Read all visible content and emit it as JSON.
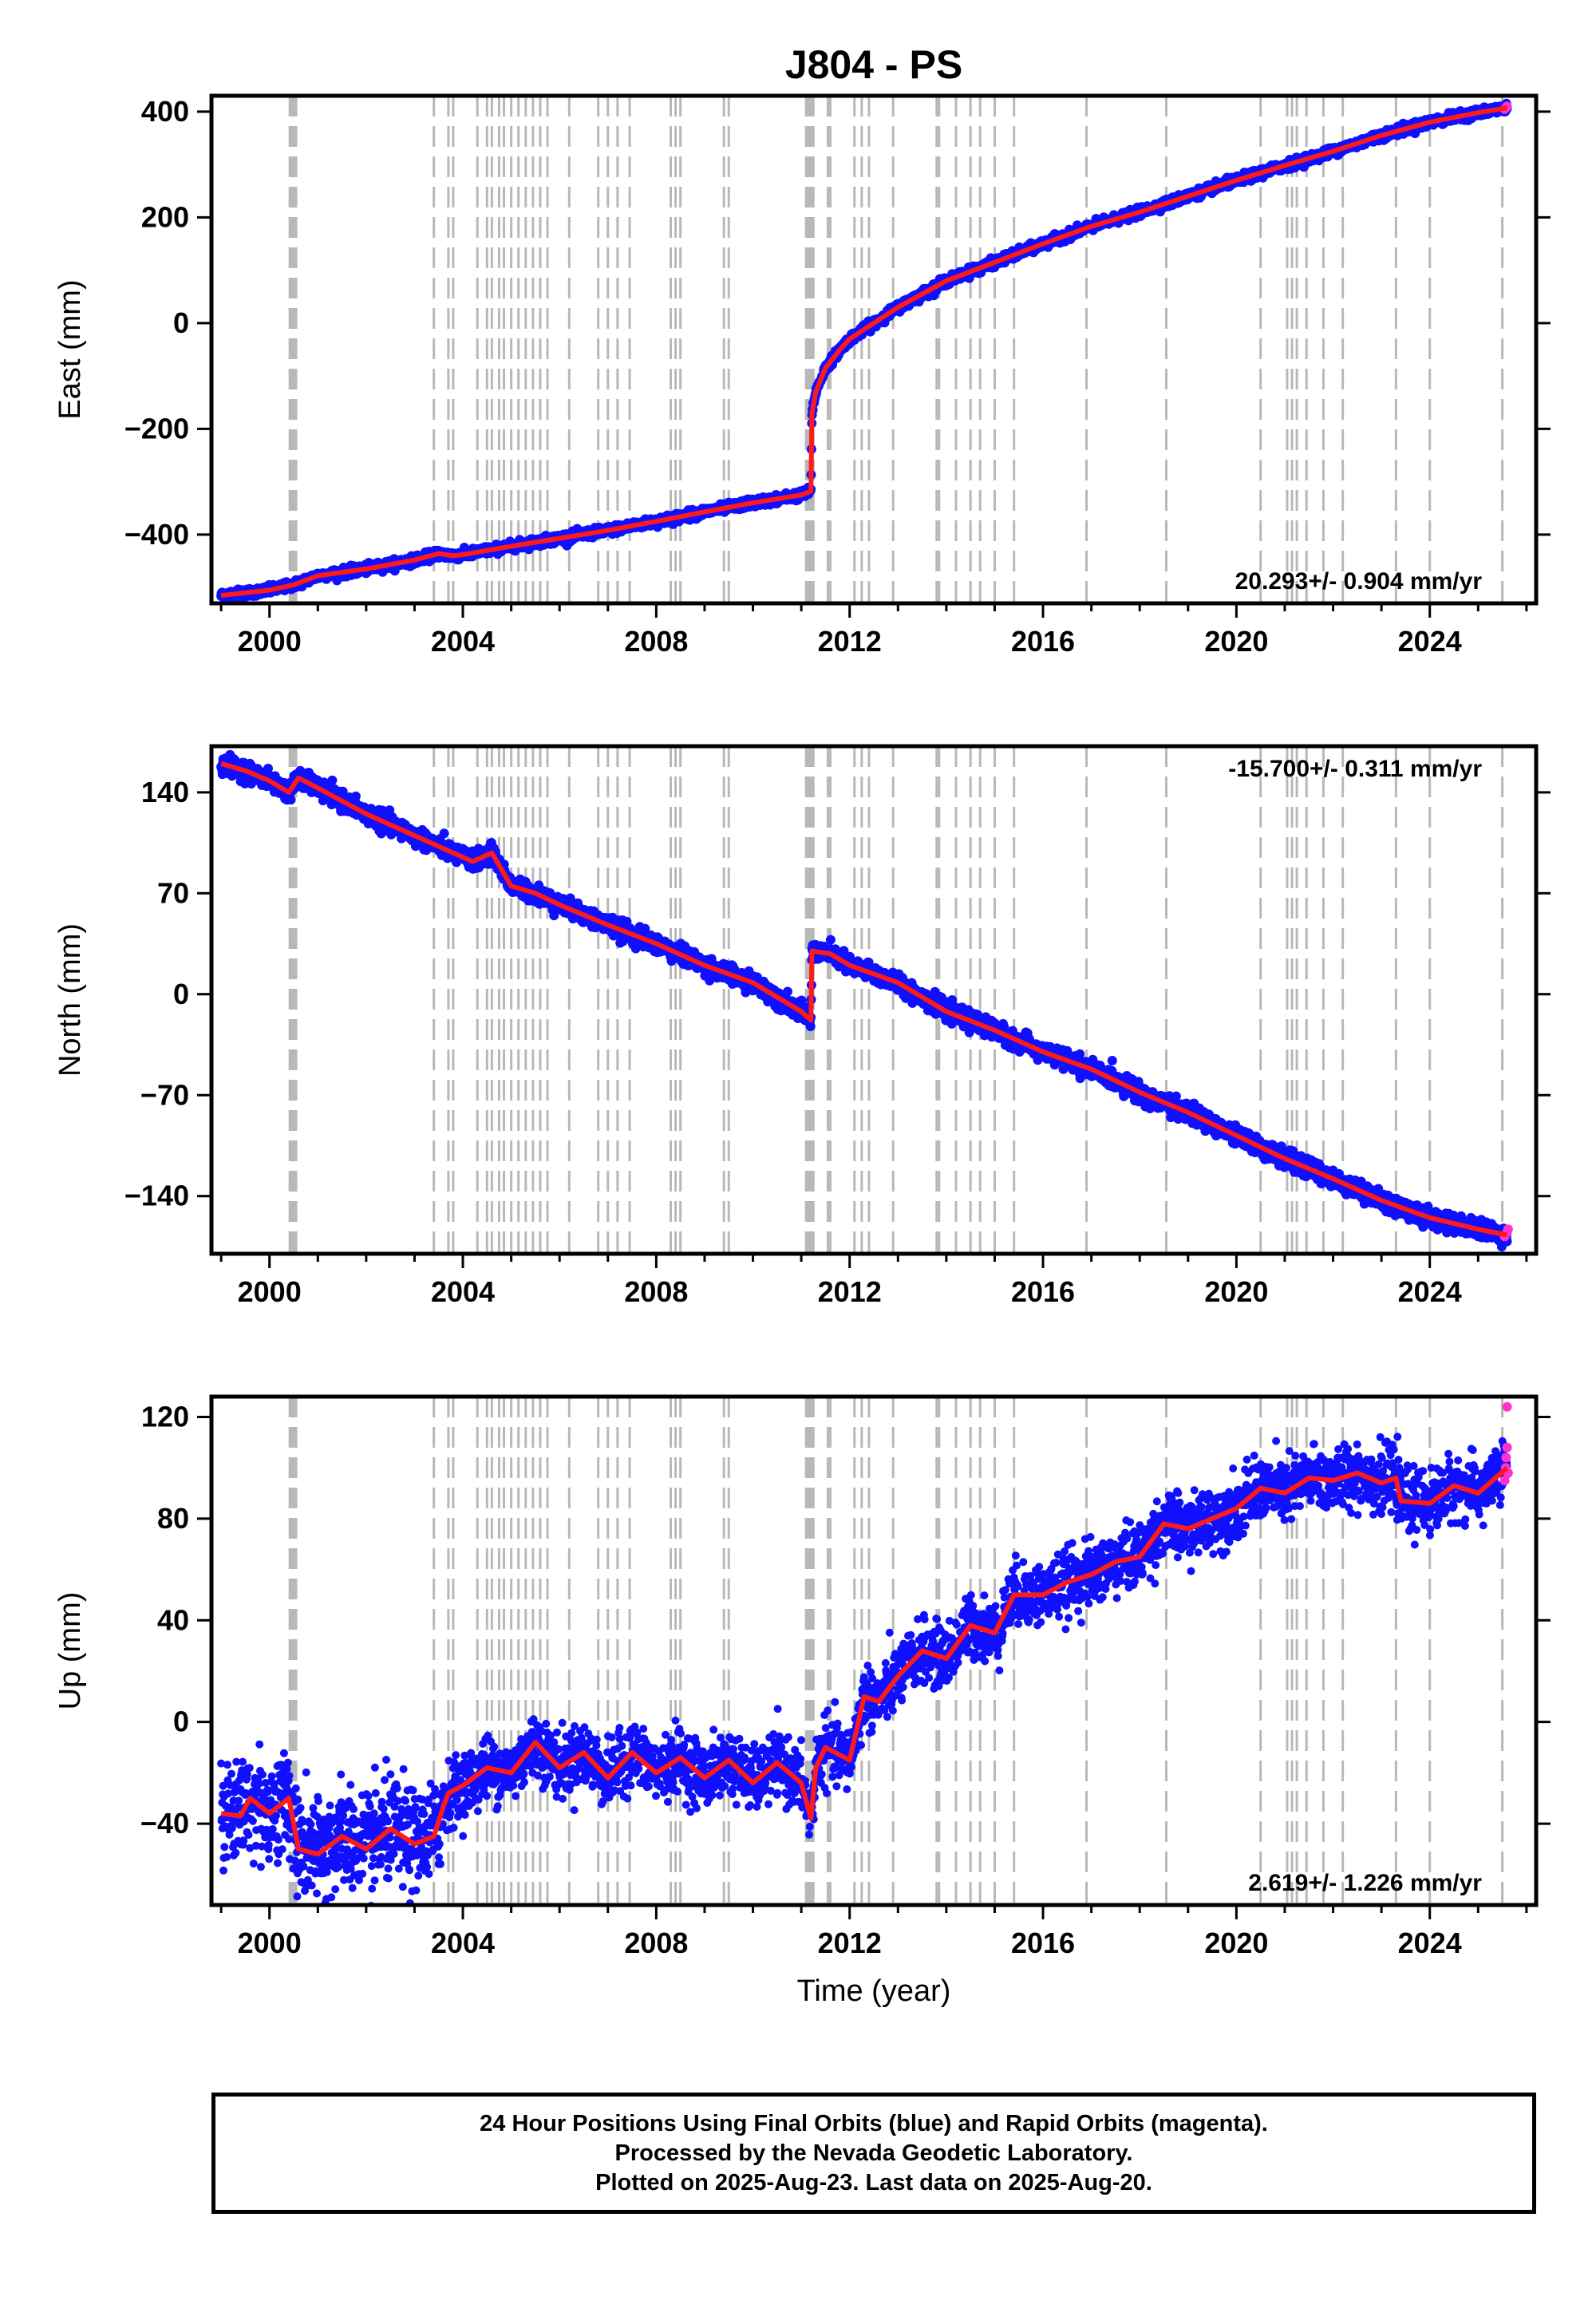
{
  "title": "J804 - PS",
  "colors": {
    "final_orbits": "#1010ff",
    "rapid_orbits": "#ff33cc",
    "trend": "#ff1a1a",
    "offset_lines": "#b8b8b8",
    "frame": "#000000"
  },
  "offset_epochs": [
    2000.42,
    2000.45,
    2000.47,
    2000.5,
    2000.52,
    2000.55,
    2003.4,
    2003.7,
    2003.8,
    2004.3,
    2004.5,
    2004.6,
    2004.75,
    2004.85,
    2005.0,
    2005.15,
    2005.3,
    2005.45,
    2005.6,
    2005.75,
    2006.2,
    2006.8,
    2007.0,
    2007.2,
    2007.45,
    2008.3,
    2008.4,
    2008.5,
    2009.4,
    2009.5,
    2011.1,
    2011.13,
    2011.16,
    2011.19,
    2011.22,
    2011.25,
    2011.55,
    2011.6,
    2012.1,
    2012.25,
    2012.4,
    2012.9,
    2013.8,
    2013.85,
    2014.2,
    2014.5,
    2014.7,
    2015.0,
    2015.4,
    2016.9,
    2018.55,
    2020.5,
    2021.05,
    2021.15,
    2021.25,
    2021.45,
    2021.8,
    2022.2,
    2023.3,
    2024.0,
    2025.5
  ],
  "chart_data": [
    {
      "type": "scatter",
      "name": "east",
      "ylabel": "East (mm)",
      "xlim": [
        1998.8,
        2026.2
      ],
      "ylim": [
        -530,
        430
      ],
      "xticks": [
        2000,
        2004,
        2008,
        2012,
        2016,
        2020,
        2024
      ],
      "xtick_labels": [
        "2000",
        "2004",
        "2008",
        "2012",
        "2016",
        "2020",
        "2024"
      ],
      "yticks": [
        400,
        200,
        0,
        -200,
        -400
      ],
      "ytick_labels": [
        "400",
        "200",
        "0",
        "−200",
        "−400"
      ],
      "rate_text": "20.293+/- 0.904 mm/yr",
      "rate_position": "bottom-right",
      "trend": [
        [
          1999.0,
          -515
        ],
        [
          2000.0,
          -505
        ],
        [
          2000.5,
          -495
        ],
        [
          2001.0,
          -478
        ],
        [
          2002.0,
          -465
        ],
        [
          2003.0,
          -448
        ],
        [
          2003.5,
          -436
        ],
        [
          2003.8,
          -440
        ],
        [
          2004.0,
          -438
        ],
        [
          2005.0,
          -422
        ],
        [
          2006.0,
          -407
        ],
        [
          2007.0,
          -392
        ],
        [
          2008.0,
          -375
        ],
        [
          2009.0,
          -357
        ],
        [
          2010.0,
          -340
        ],
        [
          2011.0,
          -325
        ],
        [
          2011.2,
          -318
        ],
        [
          2011.22,
          -170
        ],
        [
          2011.3,
          -130
        ],
        [
          2011.5,
          -85
        ],
        [
          2011.8,
          -50
        ],
        [
          2012.0,
          -30
        ],
        [
          2012.5,
          0
        ],
        [
          2013.0,
          30
        ],
        [
          2014.0,
          80
        ],
        [
          2015.0,
          115
        ],
        [
          2016.0,
          150
        ],
        [
          2017.0,
          183
        ],
        [
          2018.0,
          210
        ],
        [
          2019.0,
          240
        ],
        [
          2020.0,
          270
        ],
        [
          2021.0,
          298
        ],
        [
          2022.0,
          325
        ],
        [
          2023.0,
          355
        ],
        [
          2024.0,
          380
        ],
        [
          2025.0,
          398
        ],
        [
          2025.6,
          407
        ]
      ],
      "scatter_sd": 4,
      "rapid_points": [
        [
          2025.55,
          405
        ],
        [
          2025.58,
          408
        ],
        [
          2025.6,
          410
        ]
      ]
    },
    {
      "type": "scatter",
      "name": "north",
      "ylabel": "North (mm)",
      "xlim": [
        1998.8,
        2026.2
      ],
      "ylim": [
        -180,
        172
      ],
      "xticks": [
        2000,
        2004,
        2008,
        2012,
        2016,
        2020,
        2024
      ],
      "xtick_labels": [
        "2000",
        "2004",
        "2008",
        "2012",
        "2016",
        "2020",
        "2024"
      ],
      "yticks": [
        140,
        70,
        0,
        -70,
        -140
      ],
      "ytick_labels": [
        "140",
        "70",
        "0",
        "−70",
        "−140"
      ],
      "rate_text": "-15.700+/- 0.311 mm/yr",
      "rate_position": "top-right",
      "trend": [
        [
          1999.0,
          160
        ],
        [
          1999.5,
          155
        ],
        [
          2000.0,
          148
        ],
        [
          2000.4,
          140
        ],
        [
          2000.6,
          150
        ],
        [
          2001.0,
          143
        ],
        [
          2002.0,
          125
        ],
        [
          2003.0,
          110
        ],
        [
          2003.8,
          98
        ],
        [
          2004.2,
          92
        ],
        [
          2004.6,
          98
        ],
        [
          2005.0,
          75
        ],
        [
          2005.5,
          70
        ],
        [
          2006.0,
          62
        ],
        [
          2007.0,
          48
        ],
        [
          2008.0,
          35
        ],
        [
          2009.0,
          20
        ],
        [
          2010.0,
          8
        ],
        [
          2011.0,
          -12
        ],
        [
          2011.2,
          -18
        ],
        [
          2011.22,
          30
        ],
        [
          2011.6,
          28
        ],
        [
          2012.0,
          20
        ],
        [
          2013.0,
          8
        ],
        [
          2014.0,
          -12
        ],
        [
          2015.0,
          -25
        ],
        [
          2016.0,
          -40
        ],
        [
          2017.0,
          -52
        ],
        [
          2018.0,
          -68
        ],
        [
          2019.0,
          -82
        ],
        [
          2020.0,
          -98
        ],
        [
          2021.0,
          -114
        ],
        [
          2022.0,
          -128
        ],
        [
          2023.0,
          -143
        ],
        [
          2024.0,
          -155
        ],
        [
          2025.0,
          -163
        ],
        [
          2025.6,
          -167
        ]
      ],
      "scatter_sd": 3,
      "rapid_points": [
        [
          2025.55,
          -168
        ],
        [
          2025.6,
          -165
        ],
        [
          2025.62,
          -163
        ]
      ]
    },
    {
      "type": "scatter",
      "name": "up",
      "xlabel": "Time (year)",
      "ylabel": "Up (mm)",
      "xlim": [
        1998.8,
        2026.2
      ],
      "ylim": [
        -72,
        128
      ],
      "xticks": [
        2000,
        2004,
        2008,
        2012,
        2016,
        2020,
        2024
      ],
      "xtick_labels": [
        "2000",
        "2004",
        "2008",
        "2012",
        "2016",
        "2020",
        "2024"
      ],
      "yticks": [
        120,
        80,
        40,
        0,
        -40
      ],
      "ytick_labels": [
        "120",
        "80",
        "40",
        "0",
        "−40"
      ],
      "rate_text": "2.619+/- 1.226 mm/yr",
      "rate_position": "bottom-right",
      "trend": [
        [
          1999.0,
          -36
        ],
        [
          1999.4,
          -37
        ],
        [
          1999.6,
          -30
        ],
        [
          2000.0,
          -36
        ],
        [
          2000.4,
          -30
        ],
        [
          2000.6,
          -50
        ],
        [
          2001.0,
          -52
        ],
        [
          2001.5,
          -45
        ],
        [
          2002.0,
          -50
        ],
        [
          2002.5,
          -42
        ],
        [
          2003.0,
          -48
        ],
        [
          2003.4,
          -45
        ],
        [
          2003.6,
          -33
        ],
        [
          2003.7,
          -28
        ],
        [
          2004.0,
          -25
        ],
        [
          2004.5,
          -18
        ],
        [
          2005.0,
          -20
        ],
        [
          2005.5,
          -8
        ],
        [
          2006.0,
          -18
        ],
        [
          2006.5,
          -12
        ],
        [
          2007.0,
          -22
        ],
        [
          2007.5,
          -12
        ],
        [
          2008.0,
          -20
        ],
        [
          2008.5,
          -14
        ],
        [
          2009.0,
          -22
        ],
        [
          2009.5,
          -15
        ],
        [
          2010.0,
          -24
        ],
        [
          2010.5,
          -16
        ],
        [
          2011.0,
          -24
        ],
        [
          2011.2,
          -38
        ],
        [
          2011.3,
          -18
        ],
        [
          2011.5,
          -10
        ],
        [
          2012.0,
          -15
        ],
        [
          2012.3,
          10
        ],
        [
          2012.6,
          8
        ],
        [
          2013.0,
          18
        ],
        [
          2013.5,
          28
        ],
        [
          2014.0,
          25
        ],
        [
          2014.5,
          38
        ],
        [
          2015.0,
          35
        ],
        [
          2015.4,
          50
        ],
        [
          2016.0,
          50
        ],
        [
          2016.5,
          55
        ],
        [
          2017.0,
          58
        ],
        [
          2017.5,
          63
        ],
        [
          2018.0,
          65
        ],
        [
          2018.5,
          78
        ],
        [
          2019.0,
          76
        ],
        [
          2019.5,
          80
        ],
        [
          2020.0,
          84
        ],
        [
          2020.5,
          92
        ],
        [
          2021.0,
          90
        ],
        [
          2021.5,
          96
        ],
        [
          2022.0,
          95
        ],
        [
          2022.5,
          98
        ],
        [
          2023.0,
          94
        ],
        [
          2023.3,
          96
        ],
        [
          2023.4,
          87
        ],
        [
          2024.0,
          86
        ],
        [
          2024.5,
          93
        ],
        [
          2025.0,
          90
        ],
        [
          2025.6,
          100
        ]
      ],
      "scatter_sd": 6,
      "rapid_points": [
        [
          2025.55,
          95
        ],
        [
          2025.57,
          100
        ],
        [
          2025.58,
          104
        ],
        [
          2025.6,
          108
        ],
        [
          2025.6,
          124
        ],
        [
          2025.62,
          98
        ]
      ]
    }
  ],
  "caption": {
    "line1": "24 Hour Positions Using Final Orbits (blue) and Rapid Orbits (magenta).",
    "line2": "Processed by the Nevada Geodetic Laboratory.",
    "line3": "Plotted on 2025-Aug-23. Last data on 2025-Aug-20."
  }
}
